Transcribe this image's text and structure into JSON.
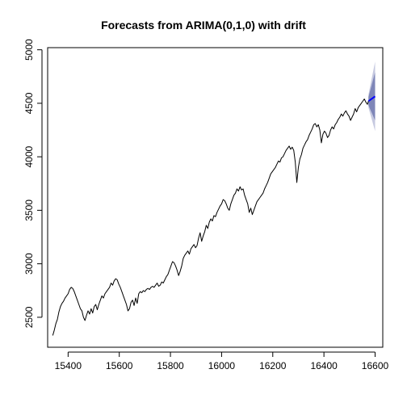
{
  "chart_data": {
    "type": "line",
    "title": "Forecasts from ARIMA(0,1,0) with drift",
    "xlabel": "",
    "ylabel": "",
    "xlim": [
      15320,
      16630
    ],
    "ylim": [
      2220,
      5020
    ],
    "x_ticks": [
      15400,
      15600,
      15800,
      16000,
      16200,
      16400,
      16600
    ],
    "y_ticks": [
      2500,
      3000,
      3500,
      4000,
      4500,
      5000
    ],
    "grid": false,
    "legend": "none",
    "colors": {
      "history": "#000000",
      "forecast": "#0000ff",
      "interval_80": "#7e86b8",
      "interval_95": "#c6c9e0"
    },
    "series": [
      {
        "role": "history",
        "x": [
          15340,
          15346,
          15352,
          15358,
          15364,
          15370,
          15376,
          15382,
          15388,
          15394,
          15400,
          15406,
          15412,
          15418,
          15424,
          15430,
          15436,
          15442,
          15448,
          15454,
          15460,
          15466,
          15472,
          15478,
          15484,
          15490,
          15496,
          15502,
          15508,
          15514,
          15520,
          15526,
          15532,
          15538,
          15544,
          15550,
          15556,
          15562,
          15568,
          15574,
          15580,
          15586,
          15592,
          15598,
          15604,
          15610,
          15616,
          15622,
          15628,
          15634,
          15640,
          15646,
          15652,
          15658,
          15664,
          15670,
          15676,
          15682,
          15688,
          15694,
          15700,
          15706,
          15712,
          15718,
          15724,
          15730,
          15736,
          15742,
          15748,
          15754,
          15760,
          15766,
          15772,
          15778,
          15784,
          15790,
          15796,
          15802,
          15808,
          15814,
          15820,
          15826,
          15832,
          15838,
          15844,
          15850,
          15856,
          15862,
          15868,
          15874,
          15880,
          15886,
          15892,
          15898,
          15904,
          15910,
          15916,
          15922,
          15928,
          15934,
          15940,
          15946,
          15952,
          15958,
          15964,
          15970,
          15976,
          15982,
          15988,
          15994,
          16000,
          16006,
          16012,
          16018,
          16024,
          16030,
          16036,
          16042,
          16048,
          16054,
          16060,
          16066,
          16072,
          16078,
          16084,
          16090,
          16096,
          16102,
          16108,
          16114,
          16120,
          16126,
          16132,
          16138,
          16144,
          16150,
          16156,
          16162,
          16168,
          16174,
          16180,
          16186,
          16192,
          16198,
          16204,
          16210,
          16216,
          16222,
          16228,
          16234,
          16240,
          16246,
          16252,
          16258,
          16264,
          16270,
          16276,
          16282,
          16288,
          16294,
          16300,
          16306,
          16312,
          16318,
          16324,
          16330,
          16336,
          16342,
          16348,
          16354,
          16360,
          16366,
          16372,
          16378,
          16384,
          16390,
          16396,
          16402,
          16408,
          16414,
          16420,
          16426,
          16432,
          16438,
          16444,
          16450,
          16456,
          16462,
          16468,
          16474,
          16480,
          16486,
          16492,
          16498,
          16504,
          16510,
          16516,
          16522,
          16528,
          16534,
          16540,
          16546,
          16552,
          16558,
          16564,
          16570,
          16574
        ],
        "y": [
          2330,
          2380,
          2440,
          2480,
          2550,
          2600,
          2630,
          2650,
          2680,
          2700,
          2720,
          2760,
          2780,
          2770,
          2740,
          2700,
          2660,
          2620,
          2580,
          2560,
          2500,
          2470,
          2520,
          2560,
          2530,
          2580,
          2540,
          2600,
          2620,
          2570,
          2620,
          2660,
          2700,
          2680,
          2720,
          2740,
          2760,
          2780,
          2820,
          2800,
          2840,
          2860,
          2850,
          2810,
          2780,
          2740,
          2700,
          2660,
          2620,
          2560,
          2580,
          2640,
          2660,
          2610,
          2680,
          2630,
          2720,
          2740,
          2730,
          2750,
          2740,
          2760,
          2770,
          2760,
          2780,
          2790,
          2780,
          2800,
          2820,
          2790,
          2800,
          2830,
          2820,
          2850,
          2880,
          2900,
          2940,
          2980,
          3020,
          3010,
          2980,
          2940,
          2890,
          2930,
          2980,
          3050,
          3080,
          3100,
          3120,
          3090,
          3140,
          3160,
          3180,
          3150,
          3170,
          3240,
          3290,
          3210,
          3260,
          3300,
          3360,
          3330,
          3390,
          3420,
          3400,
          3450,
          3440,
          3480,
          3510,
          3540,
          3560,
          3600,
          3590,
          3560,
          3520,
          3500,
          3560,
          3600,
          3640,
          3660,
          3700,
          3680,
          3720,
          3690,
          3700,
          3640,
          3600,
          3560,
          3480,
          3520,
          3460,
          3500,
          3540,
          3580,
          3600,
          3620,
          3640,
          3660,
          3700,
          3730,
          3760,
          3800,
          3840,
          3860,
          3880,
          3900,
          3930,
          3960,
          3950,
          3990,
          4000,
          4030,
          4060,
          4080,
          4100,
          4070,
          4090,
          4060,
          3950,
          3760,
          3900,
          3980,
          4020,
          4080,
          4110,
          4140,
          4160,
          4200,
          4230,
          4260,
          4300,
          4310,
          4280,
          4300,
          4250,
          4130,
          4210,
          4240,
          4220,
          4180,
          4200,
          4250,
          4280,
          4260,
          4300,
          4320,
          4350,
          4370,
          4400,
          4380,
          4410,
          4430,
          4400,
          4380,
          4340,
          4370,
          4400,
          4450,
          4420,
          4460,
          4480,
          4500,
          4520,
          4540,
          4510,
          4490,
          4520
        ]
      },
      {
        "role": "forecast",
        "x": [
          16574,
          16600
        ],
        "y": [
          4520,
          4565
        ]
      }
    ],
    "intervals": {
      "x": [
        16574,
        16600
      ],
      "lo95": [
        4460,
        4240
      ],
      "hi95": [
        4580,
        4890
      ],
      "lo80": [
        4480,
        4340
      ],
      "hi80": [
        4560,
        4790
      ]
    }
  }
}
